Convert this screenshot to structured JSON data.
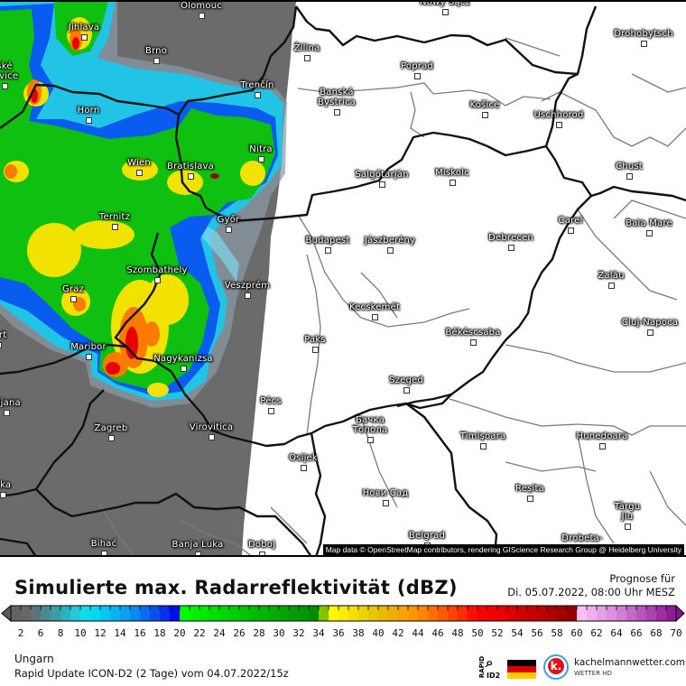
{
  "map": {
    "attribution": "Map data © OpenStreetMap contributors, rendering GIScience Research Group @ Heidelberg University",
    "cities": [
      "Olomouc",
      "Jihlava",
      "Brno",
      "ské\njovice",
      "Horn",
      "Trenčín",
      "Wien",
      "Bratislava",
      "Nitra",
      "Győr",
      "Ternitz",
      "Szombathely",
      "Graz",
      "Veszprém",
      "furt",
      "Maribor",
      "Nagykanizsa",
      "bljana",
      "Zagreb",
      "Virovitica",
      "Pécs",
      "eka",
      "Bihać",
      "Banja Luka",
      "Doboj",
      "Žilina",
      "Nowy Sącz",
      "Drohobytsch",
      "Poprad",
      "Banská\nBystrica",
      "Košice",
      "Uschhorod",
      "Chust",
      "Salgótarján",
      "Miskolc",
      "Budapest",
      "Jászberény",
      "Debrecen",
      "Carei",
      "Baia Mare",
      "Zalău",
      "Cluj-Napoca",
      "Kecskemét",
      "Paks",
      "Békéscsaba",
      "Szeged",
      "Бачка\nТопола",
      "Osijek",
      "Timișoara",
      "Hunedoara",
      "Нови Сад",
      "Reșita",
      "Târgu\nJiu",
      "Belgrad",
      "Drobeta-"
    ],
    "colors": {
      "no_data_area": "#6b6b6b",
      "land": "#ffffff",
      "national_border": "#111111",
      "region_border": "#777777"
    }
  },
  "footer": {
    "title": "Simulierte max. Radarreflektivität (dBZ)",
    "forecast_label": "Prognose für",
    "forecast_time": "Di. 05.07.2022, 08:00 Uhr MESZ",
    "region": "Ungarn",
    "model_run": "Rapid Update ICON-D2 (2 Tage) vom  04.07.2022/15z",
    "logo_rapid": "RAPID",
    "logo_id2": "ID2",
    "logo_site": "kachelmannwetter.com",
    "logo_sub": "WETTER HD",
    "logo_k": "k."
  },
  "legend": {
    "unit": "dBZ",
    "labels": [
      "2",
      "6",
      "8",
      "10",
      "12",
      "14",
      "16",
      "18",
      "20",
      "22",
      "24",
      "26",
      "28",
      "30",
      "32",
      "34",
      "36",
      "38",
      "40",
      "42",
      "44",
      "46",
      "48",
      "50",
      "52",
      "54",
      "56",
      "58",
      "60",
      "62",
      "64",
      "66",
      "68",
      "70"
    ],
    "color_stops": [
      [
        0,
        "#5e5e5e"
      ],
      [
        4,
        "#6a6a6a"
      ],
      [
        6,
        "#4f8088"
      ],
      [
        8,
        "#35a5b0"
      ],
      [
        10,
        "#1ed4e4"
      ],
      [
        11,
        "#00e2f2"
      ],
      [
        15,
        "#0a98f0"
      ],
      [
        18,
        "#0840f0"
      ],
      [
        19.9,
        "#0000e8"
      ],
      [
        20,
        "#00ff00"
      ],
      [
        27,
        "#00c000"
      ],
      [
        34,
        "#008a00"
      ],
      [
        35,
        "#ffff00"
      ],
      [
        40,
        "#e8c000"
      ],
      [
        44,
        "#ff9000"
      ],
      [
        48,
        "#ff3a00"
      ],
      [
        50,
        "#ff0000"
      ],
      [
        55,
        "#cc0000"
      ],
      [
        59.9,
        "#900000"
      ],
      [
        60,
        "#ffc8f8"
      ],
      [
        64,
        "#d888dc"
      ],
      [
        70,
        "#8a1090"
      ]
    ]
  }
}
